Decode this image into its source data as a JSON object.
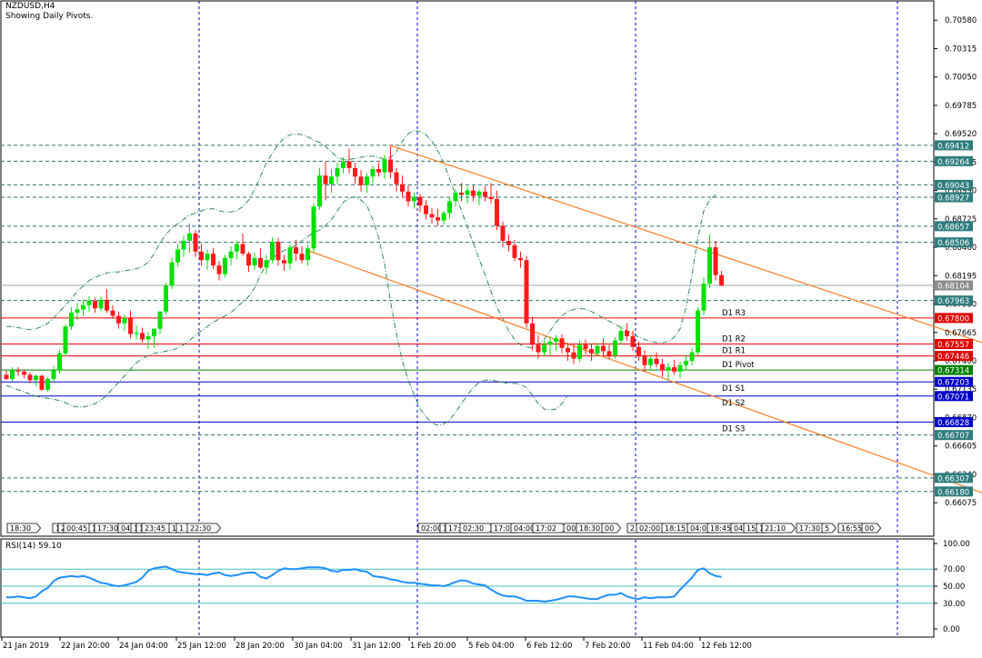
{
  "window": {
    "symbol_title": "NZDUSD,H4",
    "indicator_note": "Showing Daily Pivots."
  },
  "colors": {
    "bull": "#00e000",
    "bear": "#ff1a1a",
    "grid": "#0000c8",
    "pivot_line": "#ff0000",
    "support_line": "#0000c8",
    "trend_line": "#ff7f27",
    "band": "#2e8b57",
    "rsi_line": "#1e90ff",
    "rsi_level": "#40c0c0"
  },
  "price_axis": {
    "ticks": [
      "0.70580",
      "0.70315",
      "0.70050",
      "0.69785",
      "0.69520",
      "0.69255",
      "0.68990",
      "0.68725",
      "0.68460",
      "0.68195",
      "0.67930",
      "0.67665",
      "0.67400",
      "0.67135",
      "0.66870",
      "0.66605",
      "0.66340",
      "0.66075"
    ],
    "ylim": [
      0.66,
      0.7065
    ]
  },
  "level_tags": [
    {
      "value": 0.69412,
      "label": "0.69412",
      "style": "teal"
    },
    {
      "value": 0.69264,
      "label": "0.69264",
      "style": "teal"
    },
    {
      "value": 0.69043,
      "label": "0.69043",
      "style": "teal"
    },
    {
      "value": 0.68927,
      "label": "0.68927",
      "style": "teal"
    },
    {
      "value": 0.68657,
      "label": "0.68657",
      "style": "teal"
    },
    {
      "value": 0.68506,
      "label": "0.68506",
      "style": "teal"
    },
    {
      "value": 0.68104,
      "label": "0.68104",
      "style": "gray"
    },
    {
      "value": 0.67963,
      "label": "0.67963",
      "style": "teal"
    },
    {
      "value": 0.678,
      "label": "0.67800",
      "style": "red"
    },
    {
      "value": 0.67557,
      "label": "0.67557",
      "style": "red"
    },
    {
      "value": 0.67446,
      "label": "0.67446",
      "style": "red"
    },
    {
      "value": 0.67314,
      "label": "0.67314",
      "style": "green"
    },
    {
      "value": 0.67203,
      "label": "0.67203",
      "style": "blue"
    },
    {
      "value": 0.67071,
      "label": "0.67071",
      "style": "blue"
    },
    {
      "value": 0.66828,
      "label": "0.66828",
      "style": "blue"
    },
    {
      "value": 0.66707,
      "label": "0.66707",
      "style": "teal"
    },
    {
      "value": 0.66307,
      "label": "0.66307",
      "style": "teal"
    },
    {
      "value": 0.6618,
      "label": "0.66180",
      "style": "teal"
    }
  ],
  "pivots": [
    {
      "name": "D1 R3",
      "value": 0.678,
      "kind": "res"
    },
    {
      "name": "D1 R2",
      "value": 0.67557,
      "kind": "res"
    },
    {
      "name": "D1 R1",
      "value": 0.67446,
      "kind": "res"
    },
    {
      "name": "D1 Pivot",
      "value": 0.67314,
      "kind": "pivot"
    },
    {
      "name": "D1 S1",
      "value": 0.67203,
      "kind": "sup"
    },
    {
      "name": "D1 S2",
      "value": 0.67071,
      "kind": "sup"
    },
    {
      "name": "D1 S3",
      "value": 0.66828,
      "kind": "sup"
    }
  ],
  "dashed_levels": [
    0.69412,
    0.69264,
    0.69043,
    0.68927,
    0.68657,
    0.68506,
    0.67963,
    0.66707,
    0.66307,
    0.6618
  ],
  "current_price": 0.68104,
  "vertical_dividers": [
    "25 Jan 12:00",
    "1 Feb 20:00",
    "7 Feb 20:00",
    "13 Feb 20:00"
  ],
  "trendlines": [
    {
      "name": "upper-channel-line",
      "from": {
        "i": 65,
        "p": 0.6941
      },
      "to": {
        "i": 170,
        "p": 0.6748
      }
    },
    {
      "name": "lower-channel-line",
      "from": {
        "i": 51,
        "p": 0.6843
      },
      "to": {
        "i": 170,
        "p": 0.6607
      }
    }
  ],
  "time_axis": [
    "21 Jan 2019",
    "22 Jan 20:00",
    "24 Jan 04:00",
    "25 Jan 12:00",
    "28 Jan 20:00",
    "30 Jan 04:00",
    "31 Jan 12:00",
    "1 Feb 20:00",
    "5 Feb 04:00",
    "6 Feb 12:00",
    "7 Feb 20:00",
    "11 Feb 04:00",
    "12 Feb 12:00"
  ],
  "session_labels": [
    "18:30",
    "1",
    "2",
    "00:45",
    "1",
    "17:30",
    "04:",
    "1",
    "1",
    "23:45",
    "1",
    "1",
    "22:30",
    "02:00",
    "1",
    "17:",
    "02:30",
    "17:0",
    "04:00",
    "17:02",
    "00",
    "18:30",
    "00",
    "2",
    "02:00",
    "18:15",
    "04:00",
    "18:45",
    "04:",
    "15",
    "1",
    "21:10",
    "17:30",
    "5",
    "16:55",
    "00"
  ],
  "rsi": {
    "title": "RSI(14) 59.10",
    "ticks": [
      "100.00",
      "70.00",
      "50.00",
      "30.00",
      "0.00"
    ],
    "ylim": [
      0,
      100
    ],
    "levels": [
      70,
      50,
      30
    ]
  },
  "chart_data": {
    "type": "candlestick",
    "timeframe": "H4",
    "candles_ohlc": [
      [
        0.6727,
        0.6731,
        0.6722,
        0.6723
      ],
      [
        0.6723,
        0.6734,
        0.6721,
        0.6731
      ],
      [
        0.6731,
        0.6734,
        0.6726,
        0.673
      ],
      [
        0.673,
        0.6732,
        0.6724,
        0.6727
      ],
      [
        0.6727,
        0.6729,
        0.6719,
        0.6722
      ],
      [
        0.6722,
        0.6727,
        0.6717,
        0.6726
      ],
      [
        0.6726,
        0.6727,
        0.6712,
        0.6713
      ],
      [
        0.6713,
        0.6725,
        0.6711,
        0.6723
      ],
      [
        0.6723,
        0.6735,
        0.6721,
        0.6731
      ],
      [
        0.6731,
        0.675,
        0.6728,
        0.6747
      ],
      [
        0.6747,
        0.6774,
        0.6744,
        0.6772
      ],
      [
        0.6772,
        0.679,
        0.6769,
        0.6785
      ],
      [
        0.6785,
        0.6794,
        0.6778,
        0.6788
      ],
      [
        0.6788,
        0.6797,
        0.6782,
        0.6792
      ],
      [
        0.6792,
        0.68,
        0.6786,
        0.6796
      ],
      [
        0.6796,
        0.6799,
        0.6785,
        0.6789
      ],
      [
        0.6789,
        0.68,
        0.6786,
        0.6797
      ],
      [
        0.6797,
        0.6807,
        0.6785,
        0.6787
      ],
      [
        0.6787,
        0.6792,
        0.6779,
        0.6782
      ],
      [
        0.6782,
        0.6786,
        0.677,
        0.6775
      ],
      [
        0.6775,
        0.6783,
        0.6768,
        0.678
      ],
      [
        0.678,
        0.6787,
        0.6761,
        0.6765
      ],
      [
        0.6765,
        0.6773,
        0.676,
        0.6766
      ],
      [
        0.6766,
        0.6771,
        0.6757,
        0.676
      ],
      [
        0.676,
        0.6767,
        0.6751,
        0.6763
      ],
      [
        0.6763,
        0.6768,
        0.6752,
        0.677
      ],
      [
        0.677,
        0.6786,
        0.6765,
        0.6786
      ],
      [
        0.6786,
        0.6813,
        0.6783,
        0.681
      ],
      [
        0.681,
        0.6836,
        0.6807,
        0.6832
      ],
      [
        0.6832,
        0.6849,
        0.6828,
        0.6844
      ],
      [
        0.6844,
        0.6857,
        0.6837,
        0.6852
      ],
      [
        0.6852,
        0.6868,
        0.6841,
        0.6859
      ],
      [
        0.6859,
        0.6862,
        0.6837,
        0.6842
      ],
      [
        0.6842,
        0.6849,
        0.6829,
        0.6834
      ],
      [
        0.6834,
        0.6844,
        0.6825,
        0.684
      ],
      [
        0.684,
        0.6845,
        0.6826,
        0.6829
      ],
      [
        0.6829,
        0.6833,
        0.6815,
        0.6821
      ],
      [
        0.6821,
        0.6839,
        0.6818,
        0.6836
      ],
      [
        0.6836,
        0.6847,
        0.6829,
        0.6842
      ],
      [
        0.6842,
        0.6852,
        0.6835,
        0.6849
      ],
      [
        0.6849,
        0.6859,
        0.6838,
        0.684
      ],
      [
        0.684,
        0.6842,
        0.6823,
        0.6829
      ],
      [
        0.6829,
        0.6841,
        0.6825,
        0.6836
      ],
      [
        0.6836,
        0.6845,
        0.6826,
        0.6827
      ],
      [
        0.6827,
        0.6839,
        0.6821,
        0.6834
      ],
      [
        0.6834,
        0.6855,
        0.6831,
        0.6851
      ],
      [
        0.6851,
        0.6855,
        0.6829,
        0.6834
      ],
      [
        0.6834,
        0.6839,
        0.6824,
        0.6831
      ],
      [
        0.6831,
        0.6849,
        0.6825,
        0.6846
      ],
      [
        0.6846,
        0.6853,
        0.6833,
        0.684
      ],
      [
        0.684,
        0.6847,
        0.6831,
        0.6834
      ],
      [
        0.6834,
        0.6848,
        0.6829,
        0.6845
      ],
      [
        0.6845,
        0.6887,
        0.6841,
        0.6884
      ],
      [
        0.6884,
        0.692,
        0.6881,
        0.6913
      ],
      [
        0.6913,
        0.6926,
        0.689,
        0.6905
      ],
      [
        0.6905,
        0.6919,
        0.6897,
        0.6912
      ],
      [
        0.6912,
        0.6925,
        0.6905,
        0.692
      ],
      [
        0.692,
        0.693,
        0.6915,
        0.6926
      ],
      [
        0.6926,
        0.6938,
        0.6915,
        0.692
      ],
      [
        0.692,
        0.6925,
        0.6905,
        0.6912
      ],
      [
        0.6912,
        0.6918,
        0.6898,
        0.6904
      ],
      [
        0.6904,
        0.6915,
        0.6897,
        0.6912
      ],
      [
        0.6912,
        0.6922,
        0.6905,
        0.6919
      ],
      [
        0.6919,
        0.6925,
        0.6912,
        0.6916
      ],
      [
        0.6916,
        0.6932,
        0.691,
        0.6928
      ],
      [
        0.6928,
        0.694,
        0.691,
        0.6916
      ],
      [
        0.6916,
        0.692,
        0.6898,
        0.6905
      ],
      [
        0.6905,
        0.6913,
        0.6893,
        0.6898
      ],
      [
        0.6898,
        0.6904,
        0.6884,
        0.6889
      ],
      [
        0.6889,
        0.6897,
        0.6882,
        0.6893
      ],
      [
        0.6893,
        0.6896,
        0.6879,
        0.6885
      ],
      [
        0.6885,
        0.689,
        0.6872,
        0.6877
      ],
      [
        0.6877,
        0.6883,
        0.6868,
        0.6874
      ],
      [
        0.6874,
        0.6882,
        0.6866,
        0.6871
      ],
      [
        0.6871,
        0.688,
        0.6867,
        0.6878
      ],
      [
        0.6878,
        0.6893,
        0.6873,
        0.6889
      ],
      [
        0.6889,
        0.69,
        0.6884,
        0.6897
      ],
      [
        0.6897,
        0.6906,
        0.6889,
        0.6895
      ],
      [
        0.6895,
        0.6903,
        0.6887,
        0.6899
      ],
      [
        0.6899,
        0.6904,
        0.6889,
        0.6894
      ],
      [
        0.6894,
        0.69,
        0.6885,
        0.6898
      ],
      [
        0.6898,
        0.6903,
        0.6889,
        0.6893
      ],
      [
        0.6893,
        0.6906,
        0.6887,
        0.6891
      ],
      [
        0.6891,
        0.6899,
        0.6862,
        0.6866
      ],
      [
        0.6866,
        0.687,
        0.6846,
        0.6852
      ],
      [
        0.6852,
        0.6858,
        0.6842,
        0.6848
      ],
      [
        0.6848,
        0.6853,
        0.6833,
        0.6836
      ],
      [
        0.6836,
        0.6842,
        0.6827,
        0.6834
      ],
      [
        0.6834,
        0.6838,
        0.6771,
        0.6775
      ],
      [
        0.6775,
        0.6781,
        0.675,
        0.6755
      ],
      [
        0.6755,
        0.6764,
        0.6742,
        0.6748
      ],
      [
        0.6748,
        0.6759,
        0.6744,
        0.6755
      ],
      [
        0.6755,
        0.6763,
        0.6745,
        0.6758
      ],
      [
        0.6758,
        0.6764,
        0.6749,
        0.6761
      ],
      [
        0.6761,
        0.6765,
        0.6747,
        0.6752
      ],
      [
        0.6752,
        0.6757,
        0.674,
        0.6748
      ],
      [
        0.6748,
        0.6755,
        0.6737,
        0.6742
      ],
      [
        0.6742,
        0.6759,
        0.6739,
        0.6755
      ],
      [
        0.6755,
        0.676,
        0.6746,
        0.6751
      ],
      [
        0.6751,
        0.6756,
        0.674,
        0.6747
      ],
      [
        0.6747,
        0.6757,
        0.6744,
        0.6754
      ],
      [
        0.6754,
        0.6761,
        0.6745,
        0.6749
      ],
      [
        0.6749,
        0.6755,
        0.6742,
        0.6745
      ],
      [
        0.6745,
        0.6762,
        0.6742,
        0.6759
      ],
      [
        0.6759,
        0.6772,
        0.6755,
        0.6768
      ],
      [
        0.6768,
        0.6775,
        0.6759,
        0.6763
      ],
      [
        0.6763,
        0.6768,
        0.6749,
        0.6753
      ],
      [
        0.6753,
        0.6758,
        0.674,
        0.6745
      ],
      [
        0.6745,
        0.675,
        0.673,
        0.6736
      ],
      [
        0.6736,
        0.6745,
        0.6731,
        0.6742
      ],
      [
        0.6742,
        0.6748,
        0.6734,
        0.6737
      ],
      [
        0.6737,
        0.6742,
        0.6725,
        0.6731
      ],
      [
        0.6731,
        0.6738,
        0.6722,
        0.6734
      ],
      [
        0.6734,
        0.6741,
        0.6727,
        0.673
      ],
      [
        0.673,
        0.6739,
        0.6724,
        0.6736
      ],
      [
        0.6736,
        0.6745,
        0.6731,
        0.674
      ],
      [
        0.674,
        0.6752,
        0.6736,
        0.6748
      ],
      [
        0.6748,
        0.679,
        0.6745,
        0.6787
      ],
      [
        0.6787,
        0.6818,
        0.6783,
        0.6812
      ],
      [
        0.6812,
        0.6858,
        0.6808,
        0.6846
      ],
      [
        0.6846,
        0.6852,
        0.6815,
        0.682
      ],
      [
        0.682,
        0.6824,
        0.681,
        0.681
      ]
    ],
    "bollinger_upper": [
      0.6772,
      0.6772,
      0.6771,
      0.677,
      0.6769,
      0.677,
      0.6772,
      0.6775,
      0.678,
      0.6786,
      0.6792,
      0.6798,
      0.6805,
      0.681,
      0.6815,
      0.6818,
      0.682,
      0.6822,
      0.6823,
      0.6823,
      0.6824,
      0.6825,
      0.6826,
      0.6828,
      0.6832,
      0.684,
      0.685,
      0.6858,
      0.6864,
      0.6868,
      0.6872,
      0.6876,
      0.6878,
      0.688,
      0.6882,
      0.6882,
      0.688,
      0.6879,
      0.6879,
      0.688,
      0.6884,
      0.689,
      0.69,
      0.6912,
      0.6925,
      0.6934,
      0.6942,
      0.6948,
      0.6951,
      0.6952,
      0.6951,
      0.6949,
      0.6946,
      0.6944,
      0.694,
      0.6935,
      0.693,
      0.6928,
      0.6928,
      0.6929,
      0.693,
      0.6931,
      0.6931,
      0.693,
      0.6928,
      0.693,
      0.6935,
      0.6945,
      0.6952,
      0.6955,
      0.6954,
      0.6951,
      0.6945,
      0.6936,
      0.6925,
      0.691,
      0.6895,
      0.688,
      0.6865,
      0.685,
      0.6835,
      0.682,
      0.6805,
      0.679,
      0.6779,
      0.6768,
      0.676,
      0.6755,
      0.6753,
      0.6752,
      0.6755,
      0.676,
      0.6768,
      0.6776,
      0.6782,
      0.6786,
      0.6788,
      0.6789,
      0.6788,
      0.6786,
      0.6783,
      0.678,
      0.6777,
      0.6774,
      0.6771,
      0.6768,
      0.6765,
      0.6762,
      0.676,
      0.6758,
      0.6757,
      0.6757,
      0.6758,
      0.6762,
      0.677,
      0.679,
      0.682,
      0.6855,
      0.688,
      0.689,
      0.6895
    ],
    "bollinger_lower": [
      0.6717,
      0.6715,
      0.6713,
      0.6711,
      0.6709,
      0.6707,
      0.6706,
      0.6705,
      0.6704,
      0.6703,
      0.6701,
      0.6698,
      0.6697,
      0.6697,
      0.6698,
      0.67,
      0.6703,
      0.6708,
      0.6714,
      0.672,
      0.6726,
      0.6732,
      0.6738,
      0.6742,
      0.6745,
      0.6747,
      0.6748,
      0.6749,
      0.675,
      0.6752,
      0.6755,
      0.6759,
      0.6764,
      0.6768,
      0.6772,
      0.6776,
      0.6779,
      0.6782,
      0.6785,
      0.679,
      0.6795,
      0.68,
      0.6808,
      0.682,
      0.683,
      0.6836,
      0.684,
      0.6843,
      0.6845,
      0.6848,
      0.6852,
      0.6856,
      0.686,
      0.6862,
      0.6866,
      0.6872,
      0.688,
      0.6888,
      0.6892,
      0.6893,
      0.689,
      0.6885,
      0.6872,
      0.6855,
      0.683,
      0.6795,
      0.6765,
      0.674,
      0.6722,
      0.6708,
      0.6695,
      0.6688,
      0.6682,
      0.668,
      0.6681,
      0.6685,
      0.6692,
      0.67,
      0.6708,
      0.6715,
      0.672,
      0.6722,
      0.6722,
      0.6721,
      0.672,
      0.6719,
      0.6719,
      0.6718,
      0.6715,
      0.6708,
      0.67,
      0.6695,
      0.6694,
      0.6695,
      0.67,
      0.6708
    ],
    "rsi": [
      37,
      37,
      38,
      37,
      36,
      38,
      44,
      48,
      56,
      60,
      61,
      62,
      61,
      62,
      60,
      57,
      54,
      53,
      51,
      50,
      51,
      53,
      55,
      60,
      68,
      71,
      72,
      73,
      70,
      67,
      66,
      65,
      64,
      64,
      63,
      65,
      66,
      63,
      62,
      63,
      65,
      66,
      66,
      61,
      59,
      63,
      68,
      71,
      70,
      70,
      71,
      72,
      72,
      72,
      71,
      68,
      67,
      69,
      69,
      70,
      68,
      67,
      62,
      61,
      60,
      58,
      57,
      55,
      54,
      54,
      53,
      52,
      51,
      51,
      50,
      52,
      55,
      57,
      56,
      53,
      52,
      51,
      46,
      42,
      39,
      38,
      38,
      36,
      33,
      33,
      33,
      32,
      33,
      34,
      36,
      38,
      38,
      37,
      36,
      35,
      35,
      38,
      40,
      40,
      42,
      38,
      36,
      35,
      37,
      36,
      37,
      37,
      37,
      38,
      46,
      53,
      60,
      69,
      71,
      65,
      62,
      61
    ],
    "ylabel": "",
    "xlabel": ""
  }
}
